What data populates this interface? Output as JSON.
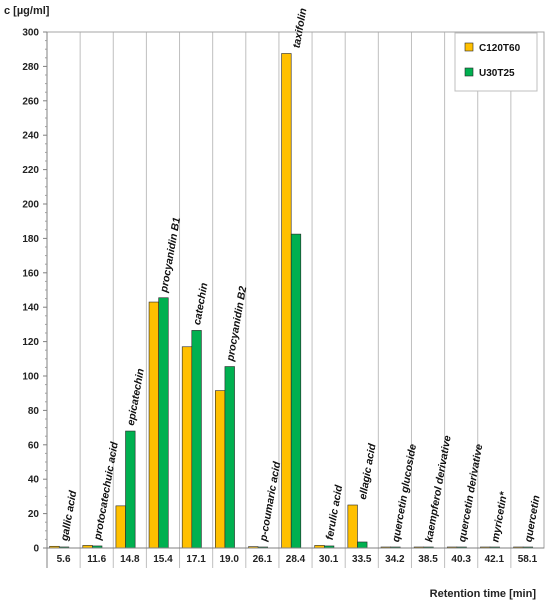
{
  "chart_data": {
    "type": "bar",
    "title": "",
    "ylabel": "c [µg/ml]",
    "xlabel": "Retention time [min]",
    "ylim": [
      0,
      300
    ],
    "yticks": [
      0,
      20,
      40,
      60,
      80,
      100,
      120,
      140,
      160,
      180,
      200,
      220,
      240,
      260,
      280,
      300
    ],
    "grid": "vertical",
    "legend_position": "top-right",
    "categories": [
      "5.6",
      "11.6",
      "14.8",
      "15.4",
      "17.1",
      "19.0",
      "26.1",
      "28.4",
      "30.1",
      "33.5",
      "34.2",
      "38.5",
      "40.3",
      "42.1",
      "58.1"
    ],
    "compounds": [
      "gallic acid",
      "protocatechuic acid",
      "epicatechin",
      "procyanidin B1",
      "catechin",
      "procyanidin B2",
      "p-coumaric acid",
      "taxifolin",
      "ferulic acid",
      "ellagic acid",
      "quercetin glucoside",
      "kaempferol derivative",
      "quercetin derivative",
      "myricetin*",
      "quercetin"
    ],
    "series": [
      {
        "name": "C120T60",
        "color": "#FFC000",
        "values": [
          1.0,
          1.5,
          24.5,
          143.0,
          117.0,
          91.5,
          0.8,
          287.5,
          1.5,
          25.0,
          0.3,
          0.3,
          0.3,
          0.2,
          0.3
        ]
      },
      {
        "name": "U30T25",
        "color": "#00B050",
        "values": [
          0.6,
          1.2,
          68.0,
          145.5,
          126.5,
          105.5,
          0.5,
          182.5,
          1.2,
          3.5,
          0.3,
          0.3,
          0.3,
          0.2,
          0.3
        ]
      }
    ]
  }
}
